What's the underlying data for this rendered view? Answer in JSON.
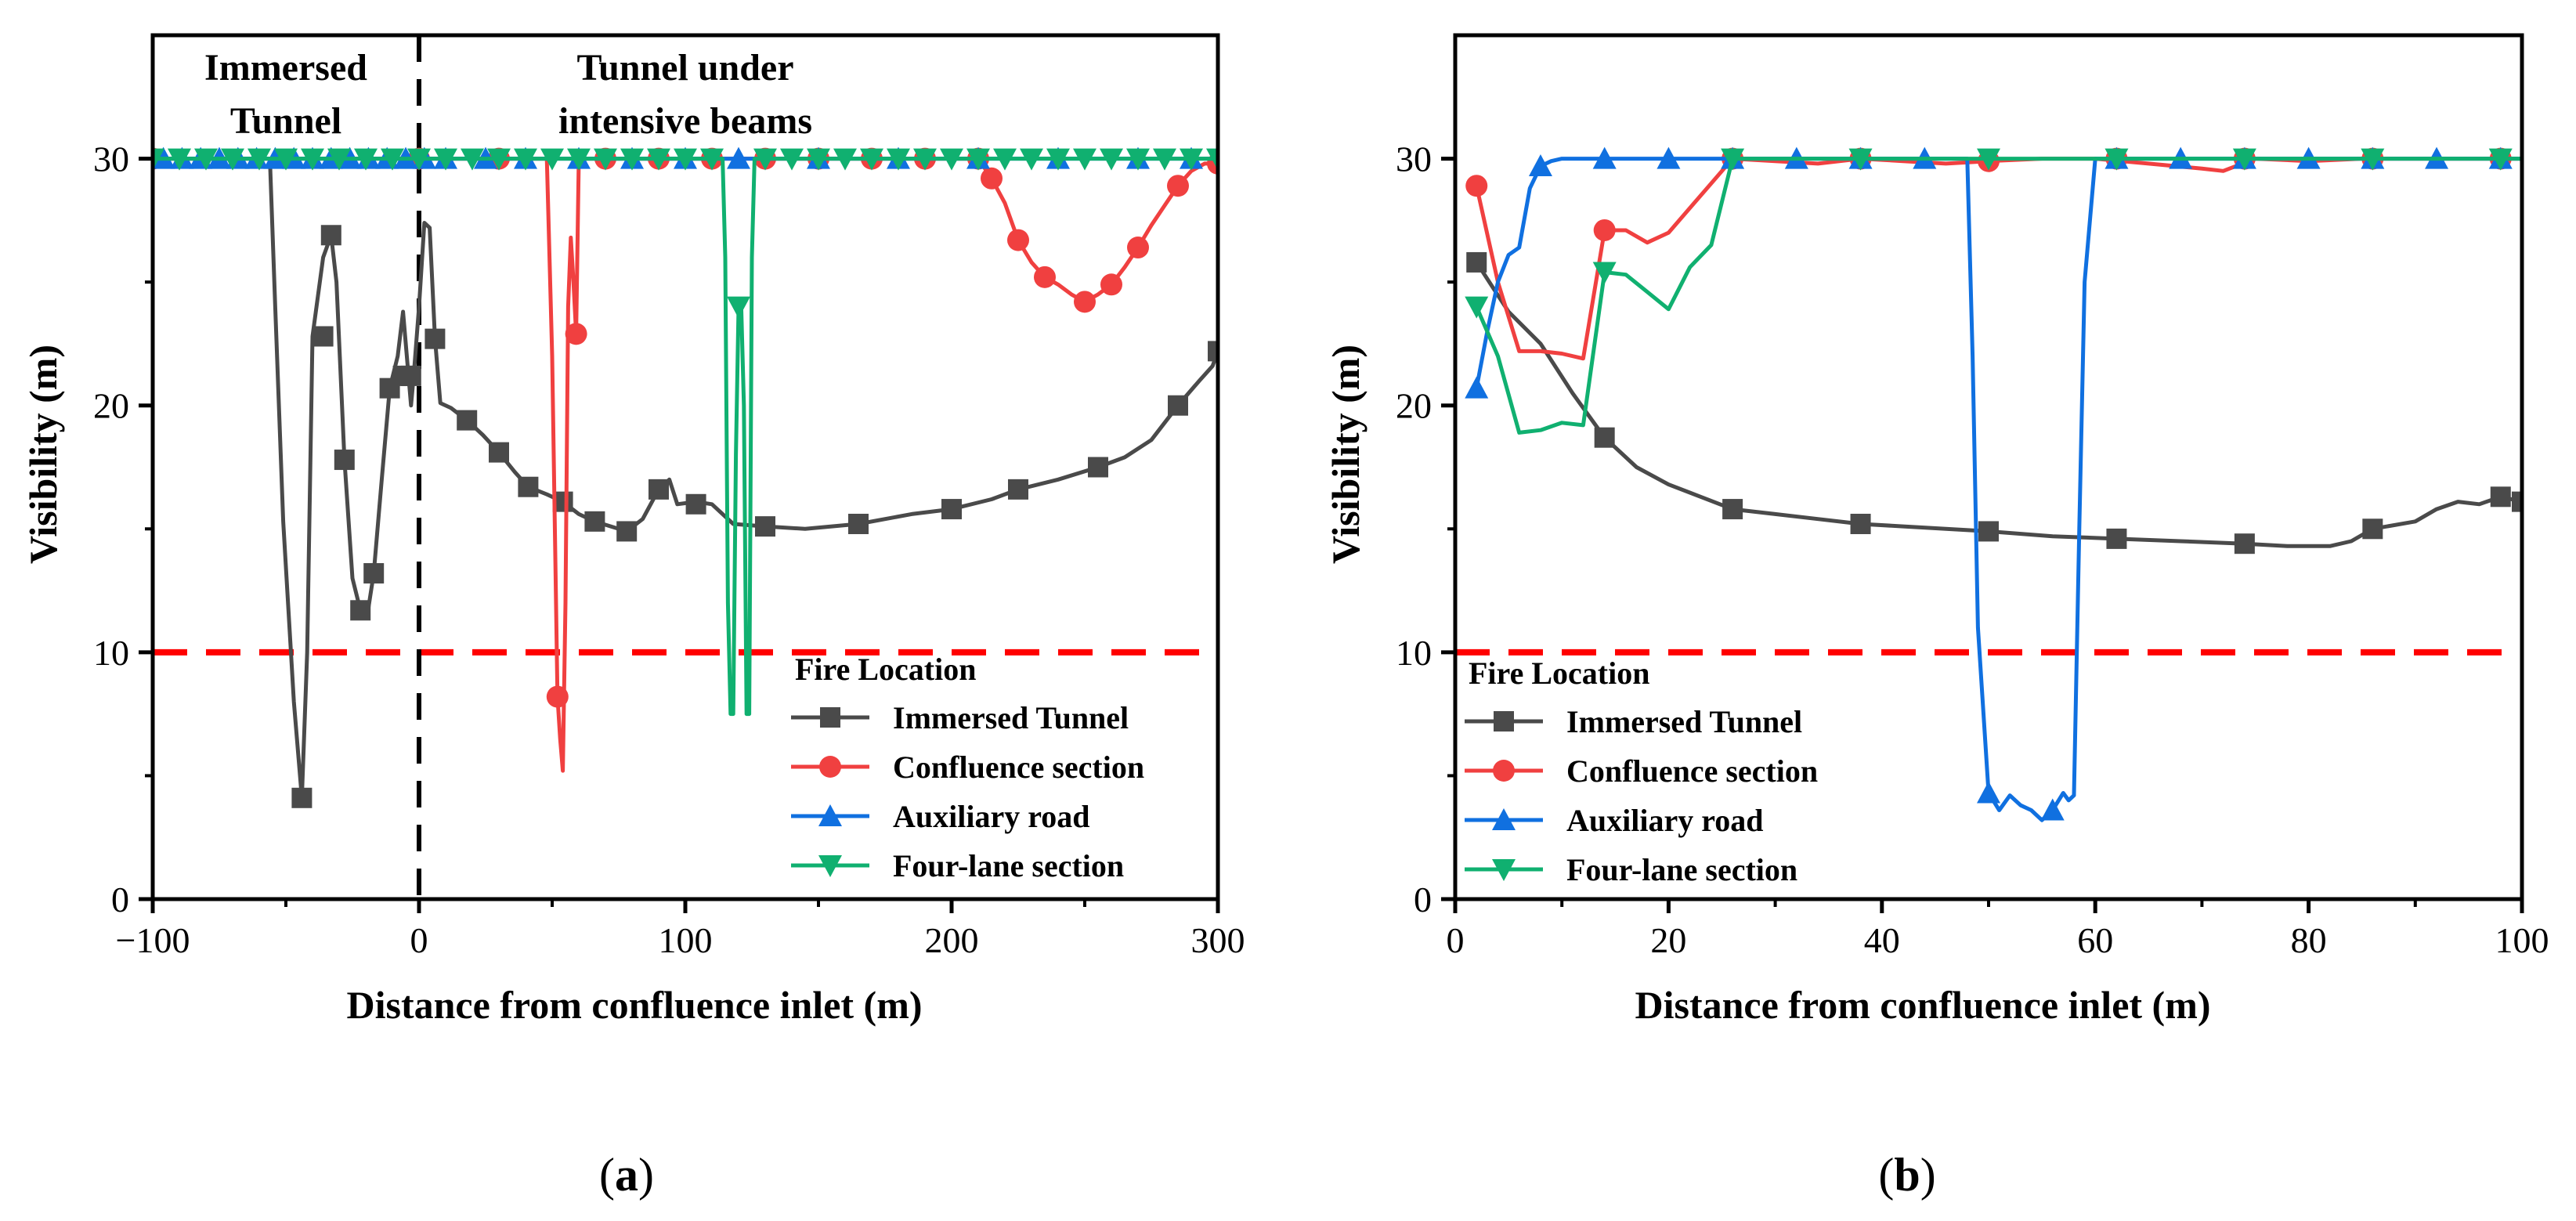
{
  "chart_data": [
    {
      "type": "line",
      "panel": "a",
      "caption": {
        "open": "(",
        "letter": "a",
        "close": ")"
      },
      "xlabel": "Distance from confluence inlet (m)",
      "ylabel": "Visibility (m)",
      "xlim": [
        -100,
        300
      ],
      "ylim": [
        0,
        35
      ],
      "xticks": [
        -100,
        0,
        100,
        200,
        300
      ],
      "xtick_labels": [
        "−100",
        "0",
        "100",
        "200",
        "300"
      ],
      "yticks": [
        0,
        10,
        20,
        30
      ],
      "threshold": {
        "y": 10,
        "color": "#ff0000",
        "style": "dashed"
      },
      "divider": {
        "x": 0,
        "color": "#000000",
        "style": "dashed"
      },
      "region_labels": [
        {
          "lines": [
            "Immersed",
            "Tunnel"
          ],
          "x": -50
        },
        {
          "lines": [
            "Tunnel under",
            "intensive beams"
          ],
          "x": 100
        }
      ],
      "legend": {
        "title": "Fire Location",
        "position": "bottom-right"
      },
      "series": [
        {
          "name": "Immersed Tunnel",
          "color": "#4a4a4a",
          "marker": "square",
          "x": [
            -100,
            -56,
            -54,
            -51,
            -47,
            -44,
            -42,
            -40,
            -36,
            -33,
            -31,
            -28,
            -25,
            -22,
            -19,
            -17,
            -14,
            -11,
            -8,
            -6,
            -3,
            -2,
            0,
            2,
            4,
            6,
            8,
            12,
            18,
            24,
            30,
            36,
            41,
            48,
            54,
            60,
            66,
            72,
            78,
            84,
            90,
            94,
            97,
            104,
            110,
            118,
            130,
            145,
            165,
            185,
            200,
            215,
            225,
            240,
            255,
            265,
            275,
            285,
            293,
            298,
            300
          ],
          "y": [
            30,
            30,
            24,
            15.3,
            8,
            4.1,
            10,
            22.8,
            26,
            26.9,
            25,
            17.8,
            13,
            11.7,
            11.8,
            13.2,
            17,
            20.7,
            22,
            23.8,
            20,
            21.2,
            24,
            27.4,
            27.2,
            22.7,
            20.1,
            19.9,
            19.4,
            18.8,
            18.1,
            17.3,
            16.7,
            16.4,
            16.1,
            15.6,
            15.3,
            15.1,
            14.9,
            15.4,
            16.6,
            17,
            16,
            16.1,
            16,
            15.2,
            15.1,
            15,
            15.2,
            15.6,
            15.8,
            16.2,
            16.6,
            17,
            17.5,
            17.9,
            18.6,
            20,
            21,
            21.6,
            22.2
          ],
          "markers_x": [
            -44,
            -36,
            -33,
            -28,
            -22,
            -17,
            -11,
            -6,
            -3,
            6,
            18,
            30,
            41,
            54,
            66,
            78,
            90,
            104,
            130,
            165,
            200,
            225,
            255,
            285,
            300
          ],
          "markers_y": [
            4.1,
            22.8,
            26.9,
            17.8,
            11.7,
            13.2,
            20.7,
            21.2,
            21.2,
            22.7,
            19.4,
            18.1,
            16.7,
            16.1,
            15.3,
            14.9,
            16.6,
            16,
            15.1,
            15.2,
            15.8,
            16.6,
            17.5,
            20,
            22.2
          ]
        },
        {
          "name": "Confluence section",
          "color": "#f04040",
          "marker": "circle",
          "x": [
            -100,
            48,
            50,
            52,
            53,
            54,
            55,
            56,
            57,
            58,
            59,
            60,
            62,
            64,
            66,
            210,
            215,
            220,
            225,
            230,
            235,
            240,
            245,
            250,
            255,
            260,
            265,
            270,
            275,
            280,
            285,
            290,
            295,
            300
          ],
          "y": [
            30,
            30,
            22,
            8.2,
            6.5,
            5.2,
            12,
            24,
            26.8,
            25,
            22.9,
            30,
            30,
            30,
            30,
            30,
            29.2,
            28.2,
            26.7,
            25.8,
            25.2,
            24.9,
            24.5,
            24.2,
            24.5,
            24.9,
            25.6,
            26.4,
            27.3,
            28.1,
            28.9,
            29.5,
            29.8,
            29.8
          ],
          "markers_x": [
            -100,
            0,
            30,
            52,
            59,
            70,
            90,
            110,
            130,
            150,
            170,
            190,
            210,
            215,
            225,
            235,
            250,
            260,
            270,
            285,
            300
          ],
          "markers_y": [
            30,
            30,
            30,
            8.2,
            22.9,
            30,
            30,
            30,
            30,
            30,
            30,
            30,
            30,
            29.2,
            26.7,
            25.2,
            24.2,
            24.9,
            26.4,
            28.9,
            29.8
          ]
        },
        {
          "name": "Auxiliary road",
          "color": "#1070e0",
          "marker": "triangle-up",
          "x": [
            -100,
            300
          ],
          "y": [
            30,
            30
          ],
          "markers_x": [
            -96,
            -89,
            -82,
            -75,
            -68,
            -61,
            -54,
            -47,
            -40,
            -33,
            -26,
            -19,
            -12,
            -5,
            2,
            10,
            25,
            40,
            60,
            80,
            100,
            120,
            150,
            180,
            210,
            240,
            270,
            290
          ],
          "markers_y": [
            30,
            30,
            30,
            30,
            30,
            30,
            30,
            30,
            30,
            30,
            30,
            30,
            30,
            30,
            30,
            30,
            30,
            30,
            30,
            30,
            30,
            30,
            30,
            30,
            30,
            30,
            30,
            30
          ]
        },
        {
          "name": "Four-lane section",
          "color": "#10b070",
          "marker": "triangle-down",
          "x": [
            -100,
            114,
            115,
            116,
            117,
            118,
            119,
            120,
            121,
            122,
            123,
            124,
            125,
            126,
            300
          ],
          "y": [
            30,
            30,
            26,
            12,
            7.5,
            7.5,
            18,
            24,
            24,
            20,
            7.5,
            7.5,
            26,
            30,
            30
          ],
          "markers_x": [
            -100,
            -90,
            -80,
            -70,
            -60,
            -50,
            -40,
            -30,
            -20,
            -10,
            0,
            10,
            20,
            30,
            40,
            50,
            60,
            70,
            80,
            90,
            100,
            110,
            120,
            130,
            140,
            150,
            160,
            170,
            180,
            190,
            200,
            210,
            220,
            230,
            240,
            250,
            260,
            270,
            280,
            290,
            300
          ],
          "markers_y": [
            30,
            30,
            30,
            30,
            30,
            30,
            30,
            30,
            30,
            30,
            30,
            30,
            30,
            30,
            30,
            30,
            30,
            30,
            30,
            30,
            30,
            30,
            24,
            30,
            30,
            30,
            30,
            30,
            30,
            30,
            30,
            30,
            30,
            30,
            30,
            30,
            30,
            30,
            30,
            30,
            30
          ]
        }
      ]
    },
    {
      "type": "line",
      "panel": "b",
      "caption": {
        "open": "(",
        "letter": "b",
        "close": ")"
      },
      "xlabel": "Distance from confluence inlet (m)",
      "ylabel": "Visibility (m)",
      "xlim": [
        0,
        100
      ],
      "ylim": [
        0,
        35
      ],
      "xticks": [
        0,
        20,
        40,
        60,
        80,
        100
      ],
      "xtick_labels": [
        "0",
        "20",
        "40",
        "60",
        "80",
        "100"
      ],
      "yticks": [
        0,
        10,
        20,
        30
      ],
      "threshold": {
        "y": 10,
        "color": "#ff0000",
        "style": "dashed"
      },
      "legend": {
        "title": "Fire Location",
        "position": "bottom-left"
      },
      "series": [
        {
          "name": "Immersed Tunnel",
          "color": "#4a4a4a",
          "marker": "square",
          "x": [
            2,
            5,
            8,
            11,
            14,
            17,
            20,
            23,
            26,
            30,
            34,
            38,
            42,
            46,
            50,
            56,
            62,
            68,
            74,
            78,
            82,
            84,
            86,
            90,
            92,
            94,
            96,
            98,
            100
          ],
          "y": [
            25.8,
            23.8,
            22.5,
            20.5,
            18.7,
            17.5,
            16.8,
            16.3,
            15.8,
            15.6,
            15.4,
            15.2,
            15.1,
            15,
            14.9,
            14.7,
            14.6,
            14.5,
            14.4,
            14.3,
            14.3,
            14.5,
            15,
            15.3,
            15.8,
            16.1,
            16,
            16.3,
            16.1
          ],
          "markers_x": [
            2,
            14,
            26,
            38,
            50,
            62,
            74,
            86,
            98,
            100
          ],
          "markers_y": [
            25.8,
            18.7,
            15.8,
            15.2,
            14.9,
            14.6,
            14.4,
            15,
            16.3,
            16.1
          ]
        },
        {
          "name": "Confluence section",
          "color": "#f04040",
          "marker": "circle",
          "x": [
            2,
            4,
            6,
            8,
            10,
            12,
            14,
            16,
            18,
            20,
            22,
            24,
            26,
            30,
            34,
            38,
            42,
            46,
            50,
            55,
            60,
            65,
            70,
            72,
            75,
            80,
            85,
            90,
            95,
            100
          ],
          "y": [
            28.9,
            25,
            22.2,
            22.2,
            22.1,
            21.9,
            27.1,
            27.1,
            26.6,
            27,
            28,
            29,
            30,
            29.9,
            29.8,
            30,
            29.9,
            29.8,
            29.9,
            30,
            30,
            29.8,
            29.6,
            29.5,
            30,
            29.9,
            30,
            30,
            30,
            30
          ],
          "markers_x": [
            2,
            14,
            26,
            38,
            50,
            62,
            74,
            86,
            98
          ],
          "markers_y": [
            28.9,
            27.1,
            30,
            30,
            29.9,
            30,
            30,
            30,
            30
          ]
        },
        {
          "name": "Auxiliary road",
          "color": "#1070e0",
          "marker": "triangle-up",
          "x": [
            2,
            3,
            4,
            5,
            6,
            7,
            8,
            9,
            10,
            12,
            48,
            48.5,
            49,
            50,
            51,
            52,
            53,
            54,
            55,
            56,
            57,
            57.5,
            58,
            58.5,
            59,
            60,
            100
          ],
          "y": [
            20.7,
            23,
            25,
            26.1,
            26.4,
            28.8,
            29.7,
            29.9,
            30,
            30,
            30,
            22,
            11,
            4.3,
            3.6,
            4.2,
            3.8,
            3.6,
            3.2,
            3.6,
            4.3,
            4,
            4.2,
            15,
            25,
            30,
            30
          ],
          "markers_x": [
            2,
            8,
            14,
            20,
            26,
            32,
            38,
            44,
            50,
            56,
            62,
            68,
            74,
            80,
            86,
            92,
            98
          ],
          "markers_y": [
            20.7,
            29.7,
            30,
            30,
            30,
            30,
            30,
            30,
            4.3,
            3.6,
            30,
            30,
            30,
            30,
            30,
            30,
            30
          ]
        },
        {
          "name": "Four-lane section",
          "color": "#10b070",
          "marker": "triangle-down",
          "x": [
            2,
            4,
            6,
            8,
            10,
            12,
            14,
            16,
            18,
            20,
            22,
            24,
            26,
            30,
            40,
            50,
            60,
            70,
            80,
            90,
            100
          ],
          "y": [
            24,
            22,
            18.9,
            19,
            19.3,
            19.2,
            25.4,
            25.3,
            24.6,
            23.9,
            25.6,
            26.5,
            30,
            30,
            30,
            30,
            30,
            30,
            30,
            30,
            30
          ],
          "markers_x": [
            2,
            14,
            26,
            38,
            50,
            62,
            74,
            86,
            98
          ],
          "markers_y": [
            24,
            25.4,
            30,
            30,
            30,
            30,
            30,
            30,
            30
          ]
        }
      ]
    }
  ]
}
